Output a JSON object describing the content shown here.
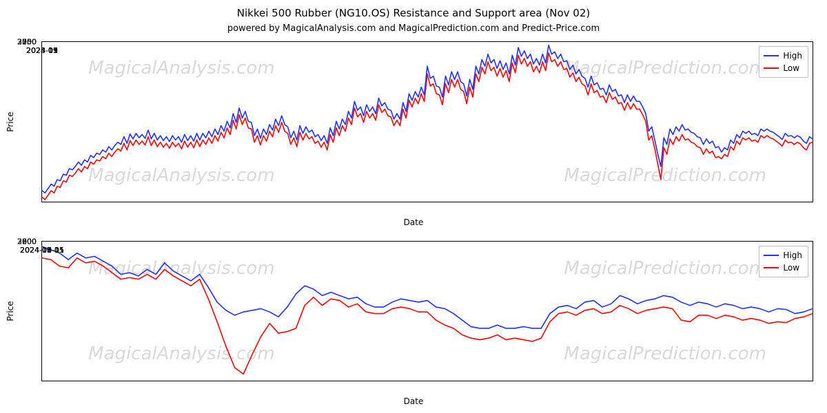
{
  "title": "Nikkei 500 Rubber (NG10.OS) Resistance and Support area (Nov 02)",
  "subtitle": "powered by MagicalAnalysis.com and MagicalPrediction.com and Predict-Price.com",
  "colors": {
    "high": "#1f30ff",
    "low": "#ff0000",
    "axis": "#000000",
    "bg": "#ffffff",
    "watermark": "#d9d9d9",
    "legend_border": "#bfbfbf"
  },
  "fontsize": {
    "title": 15,
    "subtitle": 13,
    "axis_label": 12,
    "tick": 11,
    "legend": 12,
    "watermark": 26
  },
  "legend_labels": {
    "high": "High",
    "low": "Low"
  },
  "watermarks": {
    "top_left": "MagicalAnalysis.com",
    "top_right": "MagicalPrediction.com",
    "bottom_left": "MagicalAnalysis.com",
    "bottom_right": "MagicalPrediction.com"
  },
  "chart_top": {
    "type": "line",
    "ylabel": "Price",
    "xlabel": "Date",
    "ylim": [
      2400,
      3850
    ],
    "yticks": [
      2500,
      2750,
      3000,
      3250,
      3500,
      3750
    ],
    "xlim": [
      0,
      430
    ],
    "xticks": [
      {
        "pos": 0,
        "label": "2023-03"
      },
      {
        "pos": 55,
        "label": "2023-05"
      },
      {
        "pos": 108,
        "label": "2023-07"
      },
      {
        "pos": 162,
        "label": "2023-09"
      },
      {
        "pos": 216,
        "label": "2023-11"
      },
      {
        "pos": 270,
        "label": "2024-01"
      },
      {
        "pos": 322,
        "label": "2024-03"
      },
      {
        "pos": 376,
        "label": "2024-05"
      },
      {
        "pos": 430,
        "label": "2024-07"
      },
      {
        "pos": 484,
        "label": "2024-09"
      },
      {
        "pos": 538,
        "label": "2024-11"
      }
    ],
    "xlim_actual": [
      0,
      538
    ],
    "series": {
      "high": [
        2500,
        2480,
        2520,
        2560,
        2540,
        2600,
        2590,
        2650,
        2640,
        2700,
        2690,
        2720,
        2760,
        2730,
        2780,
        2760,
        2820,
        2800,
        2840,
        2830,
        2870,
        2850,
        2900,
        2870,
        2910,
        2940,
        2920,
        2990,
        2930,
        3015,
        2970,
        3020,
        2980,
        3010,
        2975,
        3050,
        2970,
        3020,
        2960,
        3000,
        2955,
        2990,
        2945,
        3000,
        2960,
        2990,
        2940,
        3010,
        2955,
        3000,
        2950,
        3020,
        2960,
        3020,
        2980,
        3040,
        2990,
        3060,
        3010,
        3090,
        3040,
        3130,
        3070,
        3200,
        3120,
        3250,
        3160,
        3220,
        3130,
        3120,
        3000,
        3060,
        2975,
        3060,
        3010,
        3100,
        3050,
        3150,
        3090,
        3180,
        3100,
        3080,
        2980,
        3040,
        2960,
        3090,
        3020,
        3080,
        3030,
        3050,
        2990,
        3010,
        2955,
        3000,
        2930,
        3070,
        3000,
        3130,
        3060,
        3150,
        3100,
        3220,
        3160,
        3310,
        3230,
        3260,
        3180,
        3280,
        3220,
        3260,
        3200,
        3340,
        3270,
        3300,
        3240,
        3230,
        3150,
        3200,
        3150,
        3300,
        3220,
        3380,
        3320,
        3400,
        3350,
        3440,
        3370,
        3630,
        3520,
        3540,
        3450,
        3440,
        3350,
        3540,
        3460,
        3580,
        3510,
        3580,
        3490,
        3470,
        3360,
        3510,
        3420,
        3630,
        3560,
        3690,
        3630,
        3740,
        3660,
        3690,
        3610,
        3680,
        3600,
        3660,
        3560,
        3730,
        3640,
        3800,
        3720,
        3770,
        3700,
        3740,
        3650,
        3700,
        3640,
        3740,
        3660,
        3820,
        3740,
        3760,
        3700,
        3740,
        3670,
        3680,
        3600,
        3640,
        3560,
        3600,
        3540,
        3520,
        3440,
        3540,
        3460,
        3480,
        3420,
        3430,
        3370,
        3460,
        3400,
        3420,
        3360,
        3370,
        3300,
        3370,
        3310,
        3360,
        3310,
        3310,
        3260,
        3200,
        3040,
        3080,
        2960,
        2830,
        2720,
        2980,
        2920,
        3060,
        3010,
        3080,
        3040,
        3100,
        3050,
        3060,
        3030,
        3020,
        2990,
        2980,
        2920,
        2970,
        2930,
        2950,
        2890,
        2900,
        2850,
        2890,
        2870,
        2960,
        2930,
        3010,
        2980,
        3040,
        3020,
        3040,
        3010,
        3020,
        3000,
        3060,
        3040,
        3060,
        3040,
        3030,
        3010,
        2990,
        2965,
        3020,
        2995,
        3000,
        2980,
        3000,
        2985,
        2950,
        2930,
        2990,
        2970
      ],
      "low": [
        2440,
        2420,
        2460,
        2500,
        2480,
        2540,
        2530,
        2590,
        2580,
        2640,
        2630,
        2660,
        2700,
        2670,
        2720,
        2700,
        2760,
        2740,
        2780,
        2770,
        2810,
        2790,
        2840,
        2810,
        2850,
        2880,
        2860,
        2930,
        2870,
        2955,
        2910,
        2960,
        2920,
        2950,
        2915,
        2990,
        2910,
        2960,
        2900,
        2940,
        2895,
        2930,
        2885,
        2940,
        2900,
        2930,
        2880,
        2950,
        2895,
        2940,
        2890,
        2960,
        2900,
        2960,
        2920,
        2980,
        2930,
        3000,
        2950,
        3030,
        2980,
        3070,
        3010,
        3140,
        3060,
        3190,
        3100,
        3160,
        3070,
        3060,
        2940,
        3000,
        2915,
        3000,
        2950,
        3040,
        2990,
        3090,
        3030,
        3120,
        3040,
        3020,
        2920,
        2980,
        2900,
        3030,
        2960,
        3020,
        2970,
        2990,
        2930,
        2950,
        2895,
        2940,
        2870,
        3010,
        2940,
        3070,
        3000,
        3090,
        3040,
        3160,
        3100,
        3250,
        3170,
        3200,
        3120,
        3220,
        3160,
        3200,
        3140,
        3280,
        3210,
        3240,
        3180,
        3170,
        3090,
        3140,
        3090,
        3240,
        3160,
        3320,
        3260,
        3340,
        3290,
        3380,
        3310,
        3560,
        3450,
        3470,
        3380,
        3370,
        3280,
        3470,
        3390,
        3510,
        3440,
        3510,
        3420,
        3400,
        3290,
        3440,
        3350,
        3560,
        3490,
        3620,
        3560,
        3670,
        3590,
        3620,
        3540,
        3610,
        3530,
        3590,
        3490,
        3660,
        3570,
        3730,
        3650,
        3700,
        3630,
        3670,
        3580,
        3630,
        3570,
        3670,
        3590,
        3750,
        3670,
        3690,
        3630,
        3670,
        3600,
        3610,
        3530,
        3570,
        3490,
        3530,
        3470,
        3450,
        3370,
        3470,
        3390,
        3410,
        3350,
        3360,
        3300,
        3390,
        3330,
        3350,
        3290,
        3300,
        3230,
        3300,
        3240,
        3290,
        3240,
        3240,
        3190,
        3130,
        2960,
        3000,
        2880,
        2740,
        2600,
        2890,
        2830,
        2970,
        2920,
        2990,
        2950,
        3010,
        2960,
        2970,
        2940,
        2930,
        2900,
        2890,
        2830,
        2880,
        2840,
        2860,
        2800,
        2810,
        2790,
        2830,
        2810,
        2900,
        2870,
        2950,
        2920,
        2980,
        2960,
        2980,
        2950,
        2960,
        2940,
        3000,
        2980,
        3000,
        2980,
        2970,
        2950,
        2930,
        2905,
        2960,
        2935,
        2940,
        2920,
        2940,
        2925,
        2890,
        2870,
        2930,
        2940
      ]
    },
    "line_width": 1.6
  },
  "chart_bottom": {
    "type": "line",
    "ylabel": "Price",
    "xlabel": "Date",
    "ylim": [
      2550,
      3400
    ],
    "yticks": [
      2600,
      2800,
      3000,
      3200
    ],
    "xlim_actual": [
      0,
      88
    ],
    "xticks": [
      {
        "pos": 0,
        "label": "2024-07-01"
      },
      {
        "pos": 10,
        "label": "2024-07-15"
      },
      {
        "pos": 22,
        "label": "2024-08-01"
      },
      {
        "pos": 32,
        "label": "2024-08-15"
      },
      {
        "pos": 44,
        "label": "2024-09-01"
      },
      {
        "pos": 54,
        "label": "2024-09-15"
      },
      {
        "pos": 66,
        "label": "2024-10-01"
      },
      {
        "pos": 76,
        "label": "2024-10-15"
      },
      {
        "pos": 88,
        "label": "2024-11-01"
      }
    ],
    "series": {
      "high": [
        3370,
        3350,
        3330,
        3290,
        3330,
        3300,
        3310,
        3280,
        3250,
        3200,
        3210,
        3190,
        3230,
        3200,
        3270,
        3220,
        3190,
        3160,
        3200,
        3120,
        3030,
        2980,
        2950,
        2970,
        2980,
        2990,
        2970,
        2940,
        3000,
        3080,
        3130,
        3110,
        3070,
        3090,
        3070,
        3050,
        3060,
        3020,
        3000,
        3000,
        3030,
        3050,
        3040,
        3030,
        3040,
        3000,
        2990,
        2960,
        2920,
        2880,
        2870,
        2870,
        2890,
        2870,
        2870,
        2880,
        2870,
        2870,
        2960,
        3000,
        3010,
        2990,
        3030,
        3040,
        3000,
        3020,
        3070,
        3050,
        3020,
        3040,
        3050,
        3070,
        3060,
        3030,
        3010,
        3030,
        3020,
        3000,
        3020,
        3010,
        2990,
        3000,
        2990,
        2970,
        2990,
        2985,
        2960,
        2970,
        2990
      ],
      "low": [
        3300,
        3290,
        3250,
        3240,
        3300,
        3270,
        3280,
        3250,
        3210,
        3170,
        3180,
        3170,
        3200,
        3170,
        3230,
        3190,
        3160,
        3130,
        3170,
        3050,
        2910,
        2760,
        2630,
        2590,
        2710,
        2820,
        2900,
        2840,
        2850,
        2870,
        3010,
        3060,
        3010,
        3050,
        3040,
        3000,
        3020,
        2970,
        2960,
        2960,
        2990,
        3000,
        2990,
        2970,
        2970,
        2920,
        2890,
        2870,
        2830,
        2810,
        2800,
        2810,
        2830,
        2800,
        2810,
        2800,
        2790,
        2810,
        2910,
        2960,
        2970,
        2950,
        2980,
        2990,
        2960,
        2970,
        3010,
        2990,
        2960,
        2980,
        2990,
        3000,
        2990,
        2920,
        2910,
        2950,
        2950,
        2930,
        2950,
        2940,
        2920,
        2930,
        2920,
        2900,
        2910,
        2905,
        2930,
        2940,
        2960
      ]
    },
    "line_width": 1.6
  }
}
